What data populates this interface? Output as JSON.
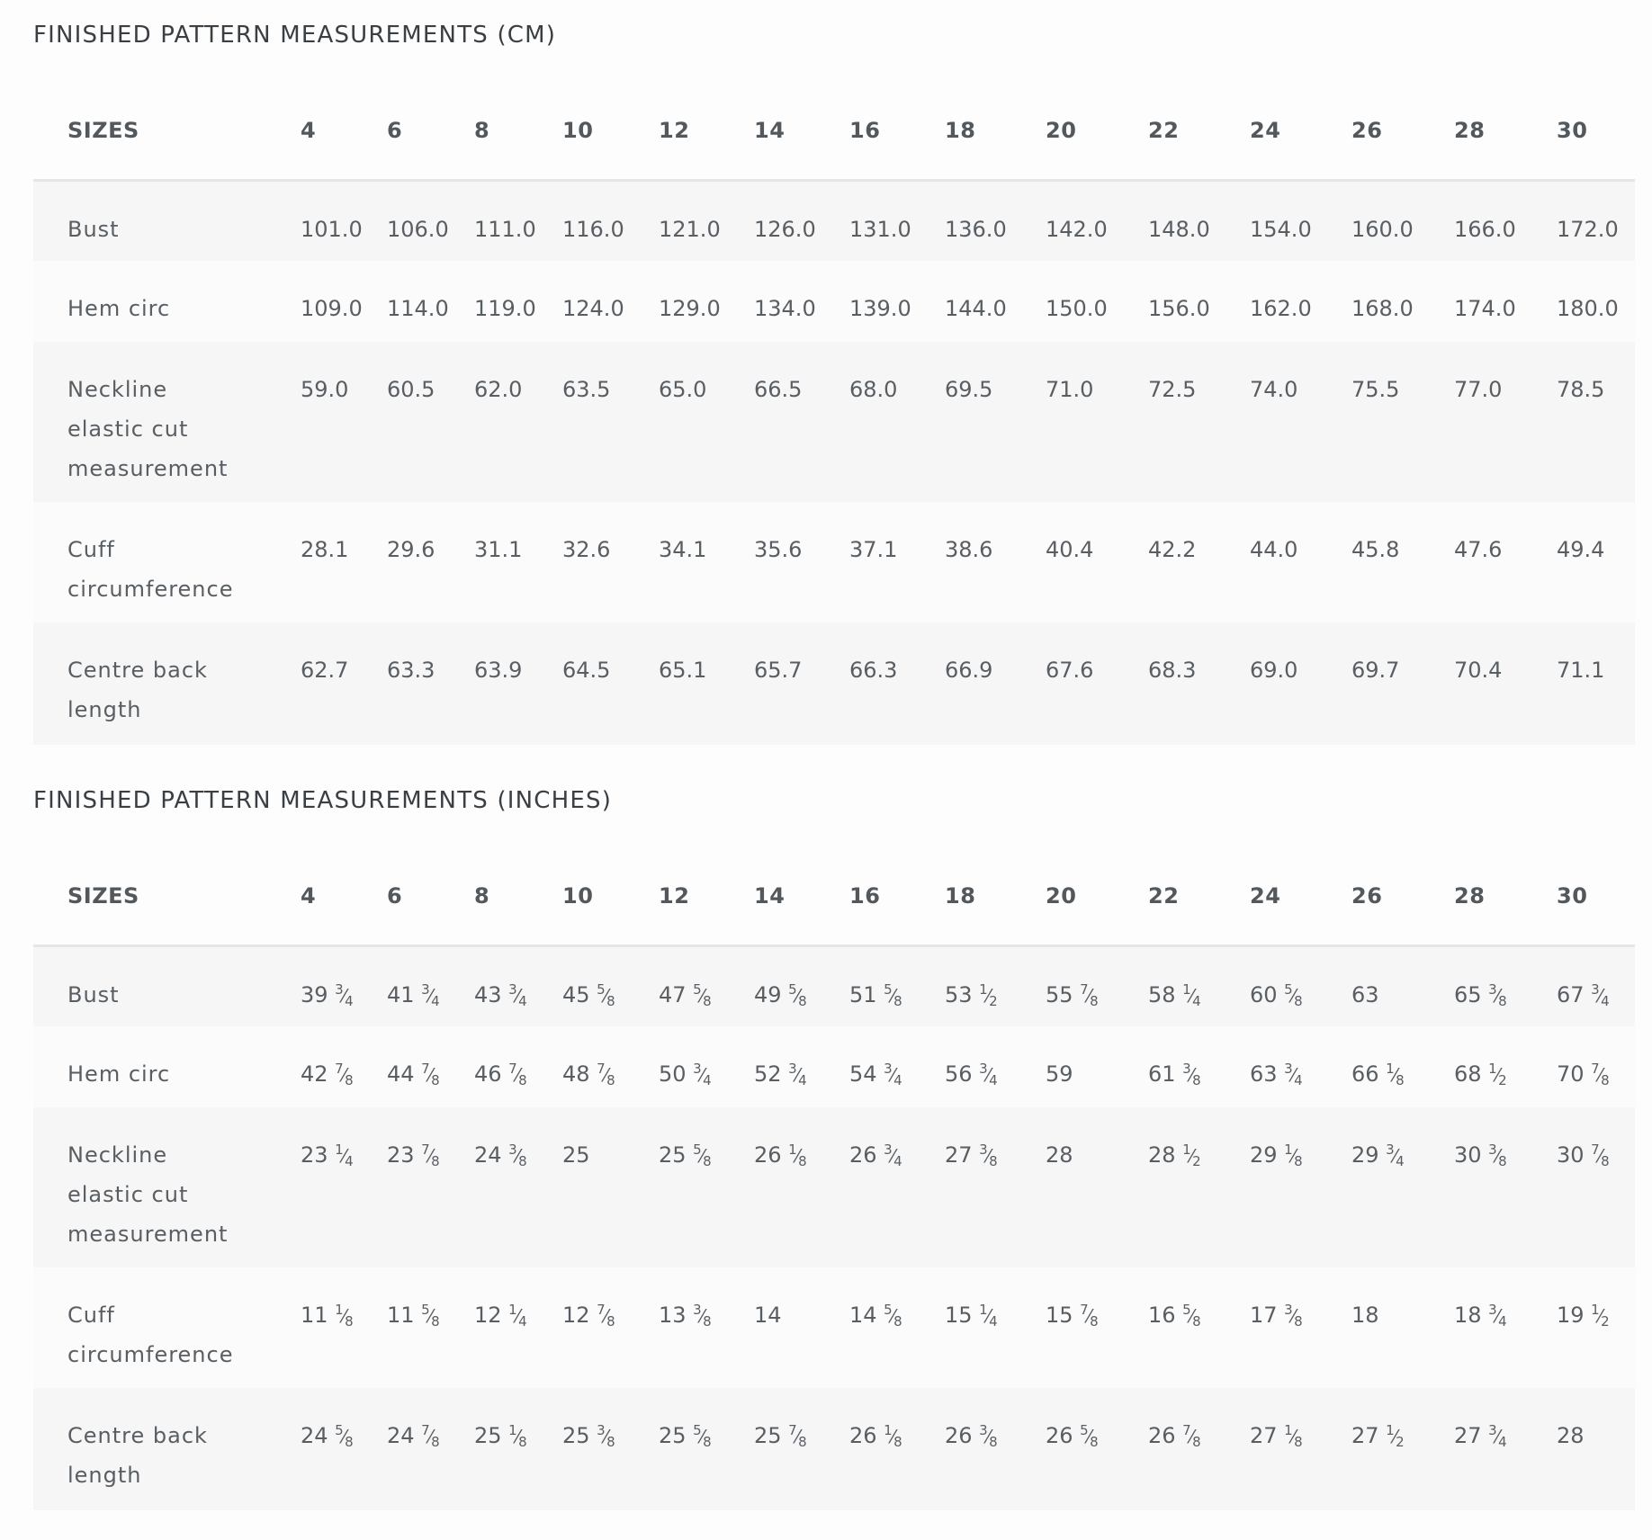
{
  "sizes_header": "SIZES",
  "sizes": [
    "4",
    "6",
    "8",
    "10",
    "12",
    "14",
    "16",
    "18",
    "20",
    "22",
    "24",
    "26",
    "28",
    "30"
  ],
  "cm_table": {
    "title": "FINISHED PATTERN MEASUREMENTS (CM)",
    "rows": [
      {
        "label": [
          "Bust"
        ],
        "values": [
          "101.0",
          "106.0",
          "111.0",
          "116.0",
          "121.0",
          "126.0",
          "131.0",
          "136.0",
          "142.0",
          "148.0",
          "154.0",
          "160.0",
          "166.0",
          "172.0"
        ]
      },
      {
        "label": [
          "Hem circ"
        ],
        "values": [
          "109.0",
          "114.0",
          "119.0",
          "124.0",
          "129.0",
          "134.0",
          "139.0",
          "144.0",
          "150.0",
          "156.0",
          "162.0",
          "168.0",
          "174.0",
          "180.0"
        ]
      },
      {
        "label": [
          "Neckline",
          "elastic cut",
          "measurement"
        ],
        "values": [
          "59.0",
          "60.5",
          "62.0",
          "63.5",
          "65.0",
          "66.5",
          "68.0",
          "69.5",
          "71.0",
          "72.5",
          "74.0",
          "75.5",
          "77.0",
          "78.5"
        ]
      },
      {
        "label": [
          "Cuff",
          "circumference"
        ],
        "values": [
          "28.1",
          "29.6",
          "31.1",
          "32.6",
          "34.1",
          "35.6",
          "37.1",
          "38.6",
          "40.4",
          "42.2",
          "44.0",
          "45.8",
          "47.6",
          "49.4"
        ]
      },
      {
        "label": [
          "Centre back",
          "length"
        ],
        "values": [
          "62.7",
          "63.3",
          "63.9",
          "64.5",
          "65.1",
          "65.7",
          "66.3",
          "66.9",
          "67.6",
          "68.3",
          "69.0",
          "69.7",
          "70.4",
          "71.1"
        ]
      }
    ]
  },
  "inch_table": {
    "title": "FINISHED PATTERN MEASUREMENTS (INCHES)",
    "rows": [
      {
        "label": [
          "Bust"
        ],
        "values": [
          "39 3/4",
          "41 3/4",
          "43 3/4",
          "45 5/8",
          "47 5/8",
          "49 5/8",
          "51 5/8",
          "53 1/2",
          "55 7/8",
          "58 1/4",
          "60 5/8",
          "63",
          "65 3/8",
          "67 3/4"
        ]
      },
      {
        "label": [
          "Hem circ"
        ],
        "values": [
          "42 7/8",
          "44 7/8",
          "46 7/8",
          "48 7/8",
          "50 3/4",
          "52 3/4",
          "54 3/4",
          "56 3/4",
          "59",
          "61 3/8",
          "63 3/4",
          "66 1/8",
          "68 1/2",
          "70 7/8"
        ]
      },
      {
        "label": [
          "Neckline",
          "elastic cut",
          "measurement"
        ],
        "values": [
          "23 1/4",
          "23 7/8",
          "24 3/8",
          "25",
          "25 5/8",
          "26 1/8",
          "26 3/4",
          "27 3/8",
          "28",
          "28 1/2",
          "29 1/8",
          "29 3/4",
          "30 3/8",
          "30 7/8"
        ]
      },
      {
        "label": [
          "Cuff",
          "circumference"
        ],
        "values": [
          "11 1/8",
          "11 5/8",
          "12 1/4",
          "12 7/8",
          "13 3/8",
          "14",
          "14 5/8",
          "15 1/4",
          "15 7/8",
          "16 5/8",
          "17 3/8",
          "18",
          "18 3/4",
          "19 1/2"
        ]
      },
      {
        "label": [
          "Centre back",
          "length"
        ],
        "values": [
          "24 5/8",
          "24 7/8",
          "25 1/8",
          "25 3/8",
          "25 5/8",
          "25 7/8",
          "26 1/8",
          "26 3/8",
          "26 5/8",
          "26 7/8",
          "27 1/8",
          "27 1/2",
          "27 3/4",
          "28"
        ]
      }
    ]
  }
}
